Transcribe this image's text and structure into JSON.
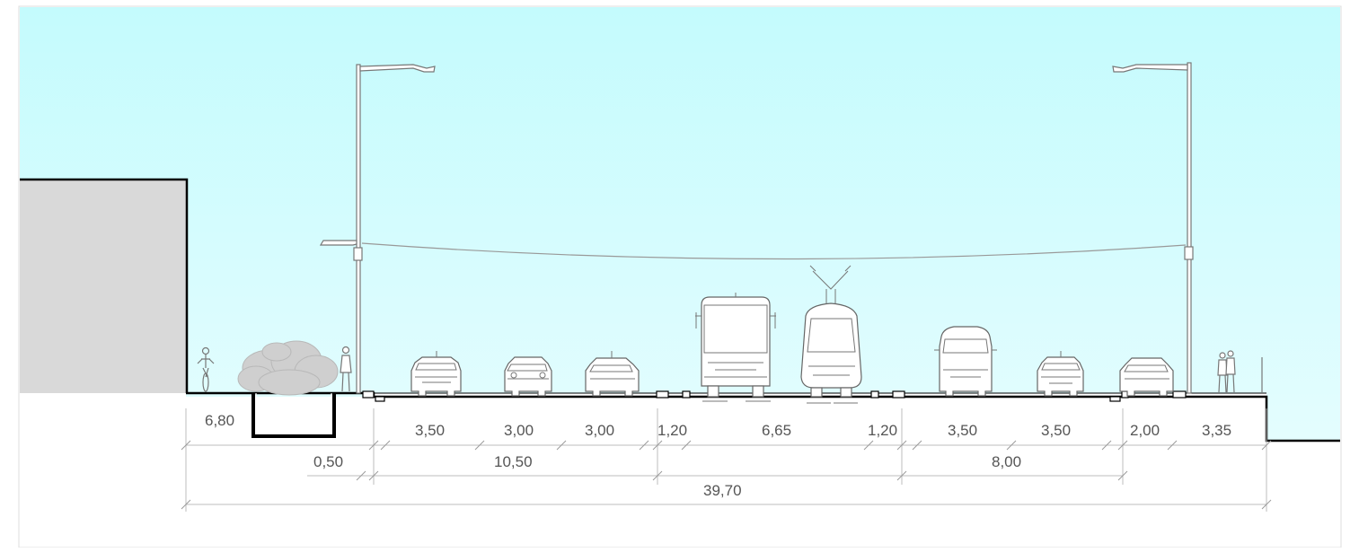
{
  "section": {
    "dimensions": {
      "row1": [
        "6,80",
        "3,50",
        "3,00",
        "3,00",
        "1,20",
        "6,65",
        "1,20",
        "3,50",
        "3,50",
        "2,00",
        "3,35"
      ],
      "row2": [
        "0,50",
        "10,50",
        "8,00"
      ],
      "row3": [
        "39,70"
      ]
    },
    "colors": {
      "sky": "#c6fbfd",
      "building": "#d9d9d9",
      "ground_line": "#000000",
      "dimension_line": "#bdbdbd",
      "text": "#555555"
    }
  }
}
